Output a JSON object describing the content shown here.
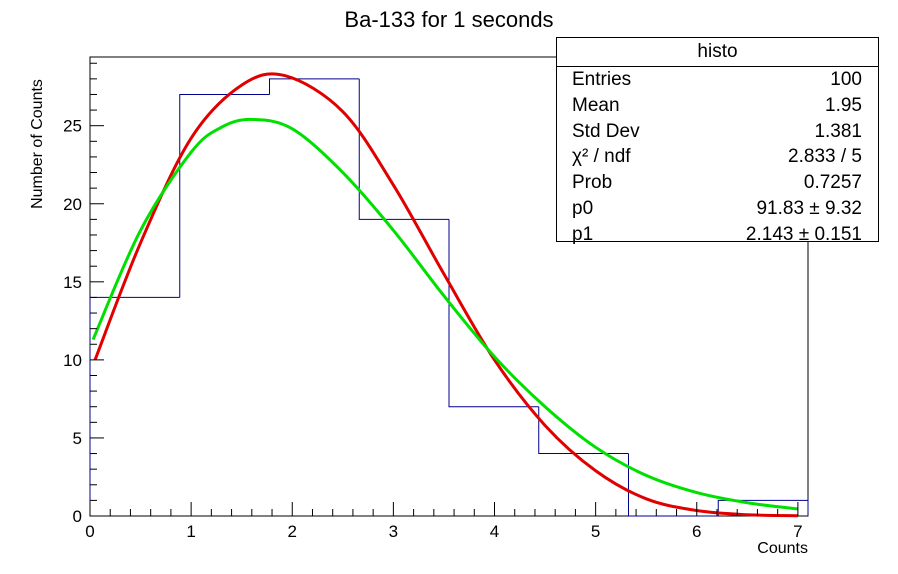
{
  "title": "Ba-133 for 1 seconds",
  "colors": {
    "histogram": "#00008b",
    "fit_red": "#e00000",
    "fit_green": "#00e000",
    "frame": "#000000"
  },
  "stats_box": {
    "header": "histo",
    "rows": [
      {
        "key": "Entries",
        "value": "100"
      },
      {
        "key": "Mean",
        "value": "1.95"
      },
      {
        "key": "Std Dev",
        "value": "1.381"
      },
      {
        "key": "χ² / ndf",
        "value": "2.833 / 5"
      },
      {
        "key": "Prob",
        "value": "0.7257"
      },
      {
        "key": "p0",
        "value": "91.83 ± 9.32"
      },
      {
        "key": "p1",
        "value": "2.143 ± 0.151"
      }
    ]
  },
  "chart_data": {
    "type": "bar",
    "title": "Ba-133 for 1 seconds",
    "xlabel": "Counts",
    "ylabel": "Number of Counts",
    "xlim": [
      0,
      7.1
    ],
    "ylim": [
      0,
      29.4
    ],
    "xticks": [
      0,
      1,
      2,
      3,
      4,
      5,
      6,
      7
    ],
    "yticks": [
      0,
      5,
      10,
      15,
      20,
      25
    ],
    "grid": false,
    "bins": [
      {
        "lo": 0.0,
        "hi": 0.8875,
        "value": 14
      },
      {
        "lo": 0.8875,
        "hi": 1.775,
        "value": 27
      },
      {
        "lo": 1.775,
        "hi": 2.6625,
        "value": 28
      },
      {
        "lo": 2.6625,
        "hi": 3.55,
        "value": 19
      },
      {
        "lo": 3.55,
        "hi": 4.4375,
        "value": 7
      },
      {
        "lo": 4.4375,
        "hi": 5.325,
        "value": 4
      },
      {
        "lo": 5.325,
        "hi": 6.2125,
        "value": 0
      },
      {
        "lo": 6.2125,
        "hi": 7.1,
        "value": 1
      }
    ],
    "series": [
      {
        "color": "#e00000",
        "x": [
          0.05,
          0.5,
          1.0,
          1.5,
          1.93,
          2.5,
          3.0,
          3.5,
          4.0,
          4.5,
          5.0,
          5.5,
          6.0,
          6.5,
          7.0
        ],
        "values": [
          10.0,
          17.5,
          24.2,
          27.6,
          28.2,
          25.9,
          21.2,
          15.5,
          10.0,
          5.8,
          2.9,
          1.1,
          0.35,
          0.08,
          0.02
        ]
      },
      {
        "color": "#00e000",
        "x": [
          0.03,
          0.5,
          1.0,
          1.3,
          1.6,
          2.0,
          2.5,
          3.0,
          3.5,
          4.0,
          4.5,
          5.0,
          5.5,
          6.0,
          6.5,
          7.0
        ],
        "values": [
          11.3,
          18.3,
          23.3,
          24.9,
          25.4,
          24.8,
          22.0,
          18.3,
          14.1,
          10.2,
          7.0,
          4.4,
          2.6,
          1.5,
          0.85,
          0.45
        ]
      }
    ]
  }
}
